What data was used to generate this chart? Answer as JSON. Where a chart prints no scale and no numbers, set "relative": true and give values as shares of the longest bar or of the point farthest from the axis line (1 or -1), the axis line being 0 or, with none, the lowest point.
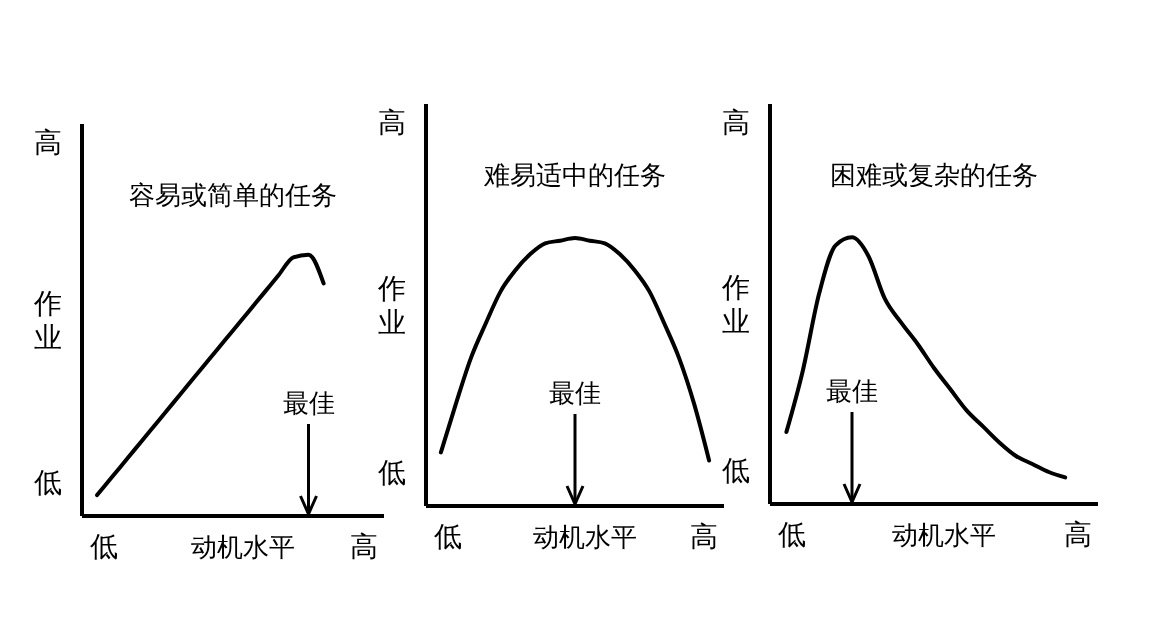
{
  "chart_data": [
    {
      "type": "line",
      "title": "容易或简单的任务",
      "xlabel": "动机水平",
      "ylabel": "作业",
      "relative": true,
      "line_style": "solid",
      "categories": [
        null,
        null,
        null,
        null,
        null,
        null,
        null,
        null,
        null,
        null,
        null,
        null,
        null,
        null,
        null,
        null,
        null,
        null,
        null,
        null,
        null
      ],
      "series": [
        {
          "color": "#000000",
          "values": [
            null,
            0.08,
            0.15,
            0.22,
            0.29,
            0.36,
            0.43,
            0.5,
            0.57,
            0.64,
            0.71,
            0.78,
            0.85,
            0.92,
            0.99,
            1,
            0.89,
            null,
            null,
            null,
            null
          ]
        }
      ],
      "annotations": [
        "高",
        "低",
        "低",
        "高",
        "最佳"
      ]
    },
    {
      "type": "line",
      "title": "难易适中的任务",
      "xlabel": "动机水平",
      "ylabel": "作业",
      "relative": true,
      "line_style": "solid",
      "categories": [
        null,
        null,
        null,
        null,
        null,
        null,
        null,
        null,
        null,
        null,
        null,
        null,
        null,
        null,
        null,
        null,
        null,
        null,
        null,
        null,
        null
      ],
      "series": [
        {
          "color": "#000000",
          "values": [
            null,
            0.2,
            0.38,
            0.55,
            0.68,
            0.8,
            0.88,
            0.94,
            0.98,
            0.99,
            1,
            0.99,
            0.98,
            0.94,
            0.88,
            0.8,
            0.68,
            0.55,
            0.38,
            0.17,
            null
          ]
        }
      ],
      "annotations": [
        "高",
        "低",
        "低",
        "高",
        "最佳"
      ]
    },
    {
      "type": "line",
      "title": "困难或复杂的任务",
      "xlabel": "动机水平",
      "ylabel": "作业",
      "relative": true,
      "line_style": "solid",
      "categories": [
        null,
        null,
        null,
        null,
        null,
        null,
        null,
        null,
        null,
        null,
        null,
        null,
        null,
        null,
        null,
        null,
        null,
        null,
        null,
        null,
        null
      ],
      "series": [
        {
          "color": "#000000",
          "values": [
            null,
            0.27,
            0.5,
            0.79,
            0.97,
            1,
            0.93,
            0.77,
            0.68,
            0.6,
            0.51,
            0.43,
            0.35,
            0.29,
            0.23,
            0.18,
            0.15,
            0.12,
            0.1,
            null,
            null
          ]
        }
      ],
      "annotations": [
        "高",
        "低",
        "低",
        "高",
        "最佳"
      ]
    }
  ]
}
